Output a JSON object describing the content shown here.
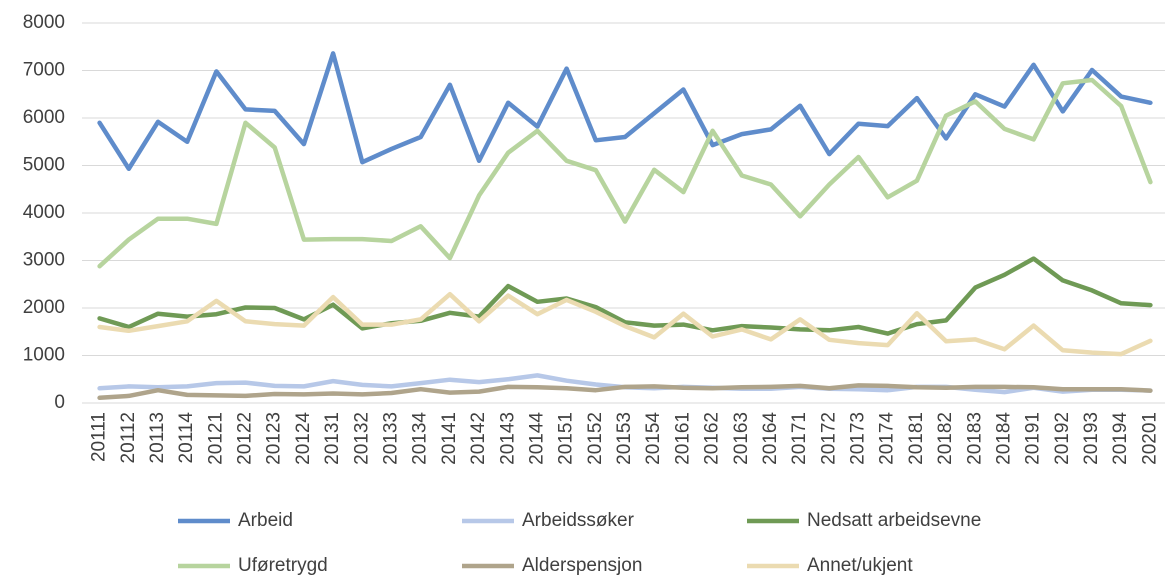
{
  "chart_data": {
    "type": "line",
    "categories": [
      "20111",
      "20112",
      "20113",
      "20114",
      "20121",
      "20122",
      "20123",
      "20124",
      "20131",
      "20132",
      "20133",
      "20134",
      "20141",
      "20142",
      "20143",
      "20144",
      "20151",
      "20152",
      "20153",
      "20154",
      "20161",
      "20162",
      "20163",
      "20164",
      "20171",
      "20172",
      "20173",
      "20174",
      "20181",
      "20182",
      "20183",
      "20184",
      "20191",
      "20192",
      "20193",
      "20194",
      "20201"
    ],
    "series": [
      {
        "name": "Arbeid",
        "color": "#5f8ccb",
        "values": [
          5900,
          4930,
          5920,
          5500,
          6980,
          6180,
          6150,
          5450,
          7360,
          5070,
          5350,
          5600,
          6700,
          5100,
          6320,
          5820,
          7040,
          5530,
          5600,
          6100,
          6600,
          5430,
          5660,
          5760,
          6260,
          5240,
          5880,
          5830,
          6420,
          5570,
          6500,
          6240,
          7120,
          6140,
          7010,
          6450,
          6320
        ]
      },
      {
        "name": "Arbeidssøker",
        "color": "#b7c8e8",
        "values": [
          310,
          350,
          330,
          350,
          420,
          430,
          360,
          350,
          460,
          380,
          350,
          420,
          490,
          440,
          500,
          580,
          470,
          390,
          330,
          310,
          340,
          320,
          300,
          300,
          340,
          300,
          290,
          270,
          340,
          340,
          280,
          230,
          320,
          240,
          280,
          280,
          260
        ]
      },
      {
        "name": "Nedsatt arbeidsevne",
        "color": "#6f9a55",
        "values": [
          1780,
          1600,
          1880,
          1820,
          1870,
          2010,
          2000,
          1760,
          2070,
          1570,
          1680,
          1730,
          1900,
          1820,
          2460,
          2130,
          2200,
          2020,
          1700,
          1630,
          1650,
          1530,
          1620,
          1590,
          1550,
          1530,
          1600,
          1460,
          1660,
          1740,
          2430,
          2700,
          3040,
          2580,
          2370,
          2100,
          2060
        ]
      },
      {
        "name": "Uføretrygd",
        "color": "#b7d49e",
        "values": [
          2880,
          3440,
          3880,
          3880,
          3770,
          5900,
          5380,
          3440,
          3450,
          3450,
          3410,
          3720,
          3050,
          4370,
          5270,
          5730,
          5100,
          4900,
          3820,
          4910,
          4440,
          5730,
          4790,
          4600,
          3930,
          4600,
          5180,
          4330,
          4680,
          6050,
          6350,
          5770,
          5550,
          6730,
          6800,
          6250,
          4650
        ]
      },
      {
        "name": "Alderspensjon",
        "color": "#afa48b",
        "values": [
          110,
          150,
          270,
          170,
          160,
          150,
          190,
          180,
          200,
          180,
          210,
          290,
          220,
          240,
          340,
          330,
          310,
          270,
          340,
          350,
          320,
          310,
          330,
          340,
          360,
          310,
          370,
          360,
          330,
          320,
          340,
          340,
          330,
          290,
          290,
          290,
          260
        ]
      },
      {
        "name": "Annet/ukjent",
        "color": "#ebdbb1",
        "values": [
          1600,
          1520,
          1620,
          1720,
          2150,
          1720,
          1660,
          1630,
          2230,
          1650,
          1650,
          1760,
          2290,
          1720,
          2260,
          1870,
          2170,
          1920,
          1620,
          1380,
          1880,
          1400,
          1550,
          1340,
          1760,
          1330,
          1260,
          1220,
          1890,
          1300,
          1340,
          1130,
          1630,
          1110,
          1060,
          1030,
          1310
        ]
      }
    ],
    "ylim": [
      0,
      8000
    ],
    "yticks": [
      0,
      1000,
      2000,
      3000,
      4000,
      5000,
      6000,
      7000,
      8000
    ],
    "grid": true,
    "legend": "bottom"
  }
}
